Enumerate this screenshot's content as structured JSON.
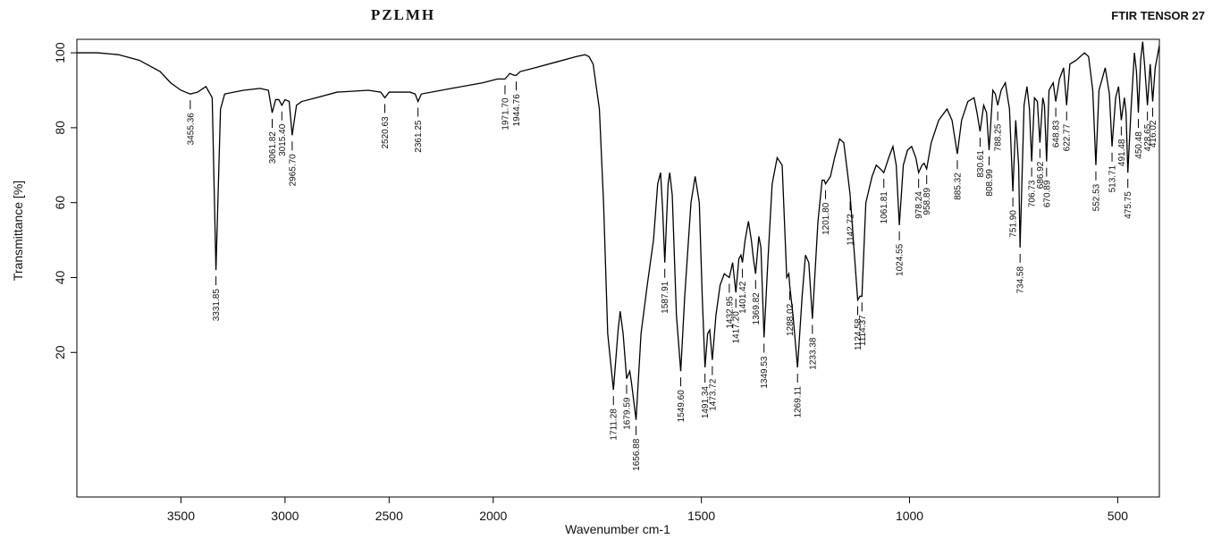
{
  "chart_data": {
    "type": "line",
    "title": "PZLMH",
    "subtitle": "FTIR TENSOR 27",
    "xlabel": "Wavenumber cm-1",
    "ylabel": "Transmittance [%]",
    "xlim": [
      4000,
      400
    ],
    "x_scale_break": 2000,
    "ylim": [
      -18.6,
      103.6
    ],
    "xticks": [
      3500,
      3000,
      2500,
      2000,
      1500,
      1000,
      500
    ],
    "yticks": [
      20,
      40,
      60,
      80,
      100
    ],
    "color": "#000000",
    "grid": false,
    "x": [
      4000,
      3900,
      3800,
      3700,
      3600,
      3550,
      3500,
      3455.36,
      3420,
      3380,
      3350,
      3331.85,
      3310,
      3290,
      3200,
      3120,
      3080,
      3061.82,
      3045,
      3030,
      3015.4,
      3000,
      2980,
      2965.7,
      2945,
      2920,
      2850,
      2750,
      2600,
      2540,
      2520.63,
      2500,
      2400,
      2375,
      2361.25,
      2345,
      2200,
      2050,
      1990,
      1971.7,
      1960,
      1950,
      1944.76,
      1935,
      1900,
      1850,
      1800,
      1780,
      1770,
      1760,
      1745,
      1735,
      1725,
      1711.28,
      1700,
      1695,
      1688,
      1679.59,
      1672,
      1668,
      1656.88,
      1645,
      1630,
      1615,
      1605,
      1598,
      1593,
      1587.91,
      1580,
      1576,
      1570,
      1560,
      1549.6,
      1540,
      1525,
      1515,
      1505,
      1498,
      1491.34,
      1485,
      1480,
      1473.72,
      1465,
      1455,
      1445,
      1439,
      1432.95,
      1425,
      1417.2,
      1410,
      1405,
      1401.42,
      1395,
      1387,
      1380,
      1375,
      1369.82,
      1362,
      1357,
      1349.53,
      1340,
      1330,
      1318,
      1306,
      1295,
      1290,
      1288.02,
      1280,
      1269.11,
      1258,
      1250,
      1242,
      1233.38,
      1220,
      1210,
      1205,
      1201.8,
      1190,
      1180,
      1168,
      1158,
      1148,
      1142.72,
      1135,
      1124.58,
      1119,
      1114.37,
      1105,
      1090,
      1080,
      1070,
      1061.81,
      1050,
      1040,
      1032,
      1024.55,
      1015,
      1005,
      995,
      985,
      978.24,
      970,
      965,
      958.89,
      948,
      930,
      910,
      898,
      885.32,
      875,
      860,
      845,
      838,
      830.61,
      822,
      815,
      808.99,
      800,
      794,
      788.25,
      780,
      770,
      760,
      751.9,
      745,
      738,
      734.58,
      725,
      718,
      712,
      706.73,
      700,
      693,
      686.92,
      680,
      676,
      670.89,
      665,
      655,
      648.83,
      640,
      630,
      622.77,
      615,
      600,
      580,
      570,
      560,
      552.53,
      545,
      530,
      520,
      513.71,
      505,
      498,
      491.48,
      484,
      480,
      475.75,
      468,
      460,
      455,
      450.48,
      445,
      440,
      435,
      428.65,
      422,
      416.02,
      410,
      400
    ],
    "values": [
      100,
      100,
      99.5,
      98,
      95,
      92,
      90,
      89,
      89.5,
      91,
      88,
      42,
      85,
      89,
      90,
      90.5,
      90,
      84,
      87.5,
      87.5,
      86,
      87.5,
      87,
      78,
      86,
      87,
      88,
      89.5,
      90,
      89.5,
      88,
      89.5,
      89.5,
      89,
      87,
      89,
      90.5,
      92,
      93,
      93,
      94.5,
      94,
      94,
      95,
      96,
      97.5,
      99,
      99.5,
      99,
      97,
      85,
      60,
      25,
      10,
      26,
      31,
      25,
      13,
      15,
      12,
      2,
      25,
      38,
      50,
      65,
      68,
      58,
      44,
      65,
      68,
      62,
      30,
      15,
      35,
      60,
      67,
      60,
      35,
      16,
      25,
      26,
      18,
      30,
      38,
      41,
      40.5,
      40,
      44,
      36,
      45,
      46,
      44,
      50,
      55,
      50,
      45,
      41,
      51,
      48,
      24,
      45,
      65,
      72,
      70,
      40,
      41,
      38,
      30,
      16,
      35,
      46,
      44,
      29,
      55,
      66,
      66,
      65,
      67,
      72,
      77,
      76,
      67,
      62,
      50,
      34,
      35,
      35,
      60,
      67,
      70,
      69,
      68,
      72,
      75,
      70,
      54,
      70,
      74,
      75,
      72,
      68,
      70,
      70.5,
      69,
      76,
      82,
      85,
      82,
      73,
      82,
      87,
      88,
      84,
      79,
      86,
      84,
      74,
      90,
      89,
      86,
      90,
      92,
      85,
      63,
      82,
      70,
      48,
      86,
      91,
      85,
      71,
      88,
      87,
      76,
      88,
      86,
      71,
      90,
      92,
      87,
      93,
      96,
      86,
      97,
      98,
      100,
      99,
      90,
      70,
      90,
      96,
      89,
      75,
      88,
      91,
      82,
      88,
      84,
      68,
      85,
      100,
      95,
      84,
      98,
      103,
      96,
      86,
      97,
      87,
      96,
      102
    ],
    "peaks": [
      {
        "x": 3455.36,
        "y": 89
      },
      {
        "x": 3331.85,
        "y": 42
      },
      {
        "x": 3061.82,
        "y": 84
      },
      {
        "x": {
          "value": 3015.4,
          "label": "3015.40"
        },
        "y": 86
      },
      {
        "x": {
          "value": 2965.7,
          "label": "2965.70"
        },
        "y": 78
      },
      {
        "x": 2520.63,
        "y": 88
      },
      {
        "x": 2361.25,
        "y": 87
      },
      {
        "x": {
          "value": 1971.7,
          "label": "1971.70"
        },
        "y": 93
      },
      {
        "x": 1944.76,
        "y": 94
      },
      {
        "x": 1711.28,
        "y": 10
      },
      {
        "x": 1679.59,
        "y": 13
      },
      {
        "x": 1656.88,
        "y": 2
      },
      {
        "x": 1587.91,
        "y": 44
      },
      {
        "x": {
          "value": 1549.6,
          "label": "1549.60"
        },
        "y": 15
      },
      {
        "x": 1491.34,
        "y": 16
      },
      {
        "x": 1473.72,
        "y": 18
      },
      {
        "x": 1432.95,
        "y": 40
      },
      {
        "x": {
          "value": 1417.2,
          "label": "1417.20"
        },
        "y": 36
      },
      {
        "x": 1401.42,
        "y": 44
      },
      {
        "x": 1369.82,
        "y": 41
      },
      {
        "x": 1349.53,
        "y": 24
      },
      {
        "x": 1288.02,
        "y": 38
      },
      {
        "x": 1269.11,
        "y": 16
      },
      {
        "x": 1233.38,
        "y": 29
      },
      {
        "x": {
          "value": 1201.8,
          "label": "1201.80"
        },
        "y": 65
      },
      {
        "x": 1142.72,
        "y": 62
      },
      {
        "x": 1124.58,
        "y": 34
      },
      {
        "x": 1114.37,
        "y": 35
      },
      {
        "x": 1061.81,
        "y": 68
      },
      {
        "x": 1024.55,
        "y": 54
      },
      {
        "x": 978.24,
        "y": 68
      },
      {
        "x": 958.89,
        "y": 69
      },
      {
        "x": 885.32,
        "y": 73
      },
      {
        "x": 830.61,
        "y": 79
      },
      {
        "x": 808.99,
        "y": 74
      },
      {
        "x": 788.25,
        "y": 86
      },
      {
        "x": {
          "value": 751.9,
          "label": "751.90"
        },
        "y": 63
      },
      {
        "x": 734.58,
        "y": 48
      },
      {
        "x": 706.73,
        "y": 71
      },
      {
        "x": 686.92,
        "y": 76
      },
      {
        "x": 670.89,
        "y": 71
      },
      {
        "x": 648.83,
        "y": 87
      },
      {
        "x": 622.77,
        "y": 86
      },
      {
        "x": 552.53,
        "y": 70
      },
      {
        "x": 513.71,
        "y": 75
      },
      {
        "x": 491.48,
        "y": 82
      },
      {
        "x": 475.75,
        "y": 68
      },
      {
        "x": 450.48,
        "y": 84
      },
      {
        "x": 428.65,
        "y": 86
      },
      {
        "x": 416.02,
        "y": 87
      }
    ]
  }
}
